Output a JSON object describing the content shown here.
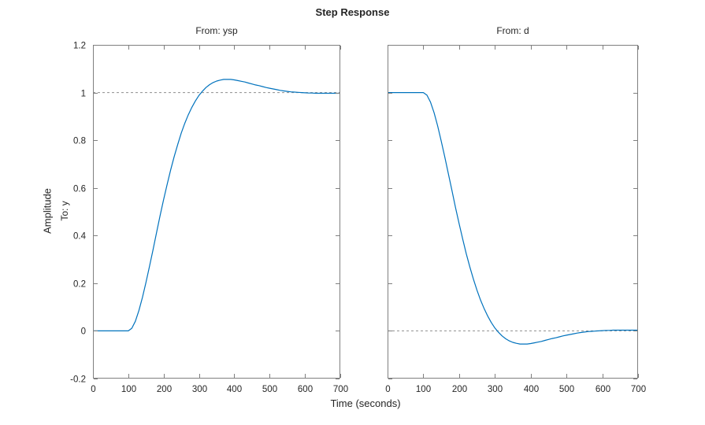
{
  "figure": {
    "title": "Step Response",
    "xlabel": "Time (seconds)",
    "ylabel_outer": "Amplitude",
    "ylabel_inner": "To: y"
  },
  "style": {
    "axis_color": "#7f7f7f",
    "text_color": "#252525",
    "background": "#ffffff"
  },
  "chart_data": [
    {
      "type": "line",
      "title": "From: ysp",
      "xlim": [
        0,
        700
      ],
      "ylim": [
        -0.2,
        1.2
      ],
      "xticks": [
        0,
        100,
        200,
        300,
        400,
        500,
        600,
        700
      ],
      "xtick_labels": [
        "0",
        "100",
        "200",
        "300",
        "400",
        "500",
        "600",
        "700"
      ],
      "yticks": [
        -0.2,
        0,
        0.2,
        0.4,
        0.6,
        0.8,
        1,
        1.2
      ],
      "ytick_labels": [
        "-0.2",
        "0",
        "0.2",
        "0.4",
        "0.6",
        "0.8",
        "1",
        "1.2"
      ],
      "show_ytick_labels": true,
      "grid": false,
      "reference_line_y": 1,
      "reference_color": "#8f8f8f",
      "line_color": "#0072BD",
      "x": [
        0,
        10,
        20,
        30,
        40,
        50,
        60,
        70,
        80,
        90,
        100,
        110,
        120,
        130,
        140,
        150,
        160,
        170,
        180,
        190,
        200,
        210,
        220,
        230,
        240,
        250,
        260,
        270,
        280,
        290,
        300,
        310,
        320,
        330,
        340,
        350,
        360,
        370,
        380,
        390,
        400,
        410,
        420,
        430,
        440,
        450,
        460,
        470,
        480,
        490,
        500,
        510,
        520,
        530,
        540,
        550,
        560,
        570,
        580,
        590,
        600,
        610,
        620,
        630,
        640,
        650,
        660,
        670,
        680,
        690,
        700
      ],
      "y": [
        0,
        0,
        0,
        0,
        0,
        0,
        0,
        0,
        0,
        0,
        0,
        0.011,
        0.04,
        0.085,
        0.14,
        0.203,
        0.271,
        0.341,
        0.412,
        0.483,
        0.551,
        0.615,
        0.676,
        0.732,
        0.783,
        0.83,
        0.871,
        0.907,
        0.938,
        0.965,
        0.988,
        1.006,
        1.021,
        1.033,
        1.042,
        1.048,
        1.052,
        1.055,
        1.055,
        1.055,
        1.053,
        1.05,
        1.047,
        1.044,
        1.04,
        1.036,
        1.032,
        1.029,
        1.025,
        1.021,
        1.018,
        1.015,
        1.012,
        1.009,
        1.007,
        1.005,
        1.003,
        1.002,
        1.001,
        1.0,
        0.999,
        0.998,
        0.998,
        0.997,
        0.997,
        0.997,
        0.997,
        0.997,
        0.997,
        0.997,
        0.997
      ]
    },
    {
      "type": "line",
      "title": "From: d",
      "xlim": [
        0,
        700
      ],
      "ylim": [
        -0.2,
        1.2
      ],
      "xticks": [
        0,
        100,
        200,
        300,
        400,
        500,
        600,
        700
      ],
      "xtick_labels": [
        "0",
        "100",
        "200",
        "300",
        "400",
        "500",
        "600",
        "700"
      ],
      "yticks": [
        -0.2,
        0,
        0.2,
        0.4,
        0.6,
        0.8,
        1,
        1.2
      ],
      "ytick_labels": [
        "-0.2",
        "0",
        "0.2",
        "0.4",
        "0.6",
        "0.8",
        "1",
        "1.2"
      ],
      "show_ytick_labels": false,
      "grid": false,
      "reference_line_y": 0,
      "reference_color": "#8f8f8f",
      "line_color": "#0072BD",
      "x": [
        0,
        10,
        20,
        30,
        40,
        50,
        60,
        70,
        80,
        90,
        100,
        110,
        120,
        130,
        140,
        150,
        160,
        170,
        180,
        190,
        200,
        210,
        220,
        230,
        240,
        250,
        260,
        270,
        280,
        290,
        300,
        310,
        320,
        330,
        340,
        350,
        360,
        370,
        380,
        390,
        400,
        410,
        420,
        430,
        440,
        450,
        460,
        470,
        480,
        490,
        500,
        510,
        520,
        530,
        540,
        550,
        560,
        570,
        580,
        590,
        600,
        610,
        620,
        630,
        640,
        650,
        660,
        670,
        680,
        690,
        700
      ],
      "y": [
        1,
        1,
        1,
        1,
        1,
        1,
        1,
        1,
        1,
        1,
        1,
        0.989,
        0.96,
        0.915,
        0.86,
        0.797,
        0.729,
        0.659,
        0.588,
        0.517,
        0.449,
        0.385,
        0.324,
        0.268,
        0.217,
        0.17,
        0.129,
        0.093,
        0.062,
        0.035,
        0.012,
        -0.006,
        -0.021,
        -0.033,
        -0.042,
        -0.048,
        -0.052,
        -0.055,
        -0.055,
        -0.055,
        -0.053,
        -0.05,
        -0.047,
        -0.044,
        -0.04,
        -0.036,
        -0.032,
        -0.029,
        -0.025,
        -0.021,
        -0.018,
        -0.015,
        -0.012,
        -0.009,
        -0.007,
        -0.005,
        -0.003,
        -0.002,
        -0.001,
        0,
        0.001,
        0.002,
        0.002,
        0.003,
        0.003,
        0.003,
        0.003,
        0.003,
        0.003,
        0.003,
        0.003
      ]
    }
  ]
}
